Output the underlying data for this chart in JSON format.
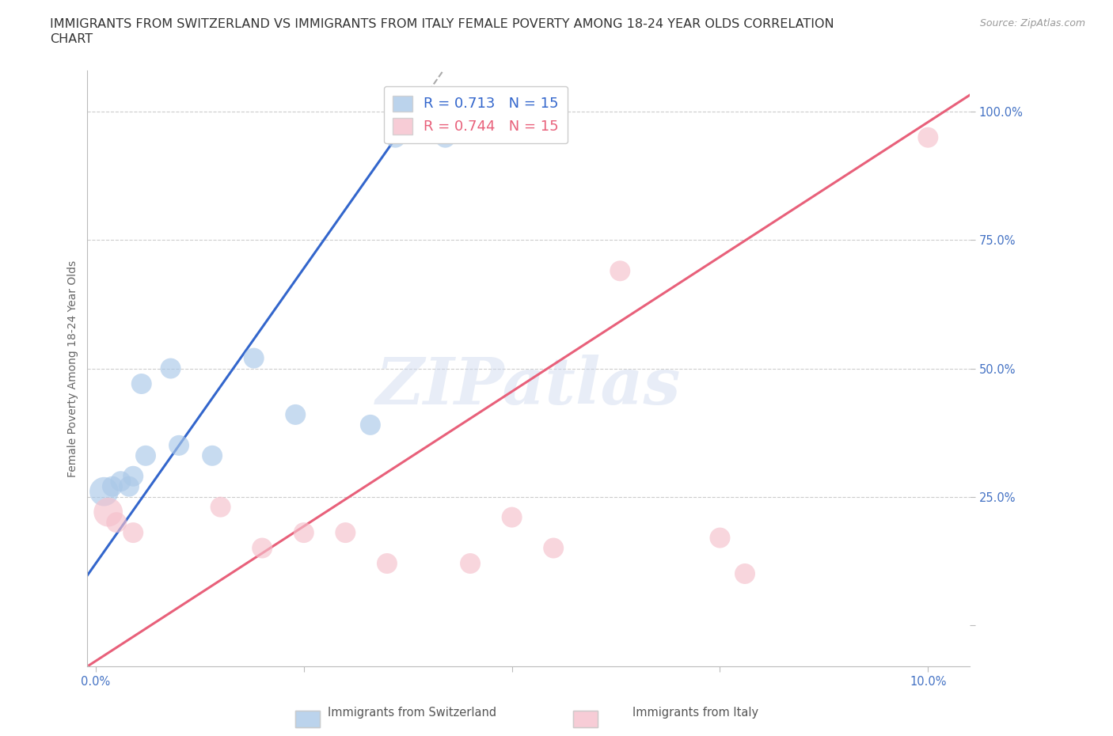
{
  "title_line1": "IMMIGRANTS FROM SWITZERLAND VS IMMIGRANTS FROM ITALY FEMALE POVERTY AMONG 18-24 YEAR OLDS CORRELATION",
  "title_line2": "CHART",
  "source": "Source: ZipAtlas.com",
  "ylabel": "Female Poverty Among 18-24 Year Olds",
  "xlim": [
    -0.1,
    10.5
  ],
  "ylim": [
    -8,
    108
  ],
  "switzerland_x": [
    0.1,
    0.2,
    0.3,
    0.4,
    0.45,
    0.55,
    0.6,
    0.9,
    1.0,
    1.4,
    1.9,
    2.4,
    3.3,
    3.6,
    4.2
  ],
  "switzerland_y": [
    26,
    27,
    28,
    27,
    29,
    47,
    33,
    50,
    35,
    33,
    52,
    41,
    39,
    95,
    95
  ],
  "italy_x": [
    0.15,
    0.25,
    0.45,
    1.5,
    2.0,
    2.5,
    3.0,
    3.5,
    4.5,
    5.0,
    5.5,
    6.3,
    7.5,
    7.8,
    10.0
  ],
  "italy_y": [
    22,
    20,
    18,
    23,
    15,
    18,
    18,
    12,
    12,
    21,
    15,
    69,
    17,
    10,
    95
  ],
  "swiss_color": "#aac8e8",
  "italy_color": "#f5c0cc",
  "swiss_line_color": "#3366cc",
  "italy_line_color": "#e8607a",
  "swiss_r": 0.713,
  "swiss_n": 15,
  "italy_r": 0.744,
  "italy_n": 15,
  "legend_label_swiss": "Immigrants from Switzerland",
  "legend_label_italy": "Immigrants from Italy",
  "watermark": "ZIPatlas",
  "background_color": "#ffffff",
  "grid_color": "#cccccc",
  "tick_color": "#4472c4",
  "title_fontsize": 11.5,
  "axis_label_fontsize": 10,
  "tick_fontsize": 10.5,
  "source_fontsize": 9
}
